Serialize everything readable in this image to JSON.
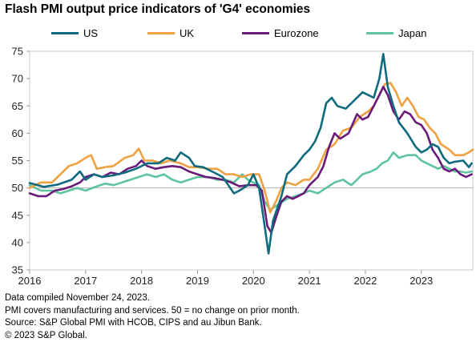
{
  "title": "Flash PMI output price indicators of 'G4' economies",
  "notes": [
    "Data compiled November 24, 2023.",
    "PMI covers manufacturing and services. 50 = no change on prior month.",
    "Source: S&P Global PMI with HCOB, CIPS and au Jibun Bank.",
    "© 2023 S&P Global."
  ],
  "chart_data": {
    "type": "line",
    "x_tick_labels": [
      "2016",
      "2017",
      "2018",
      "2019",
      "2020",
      "2021",
      "2022",
      "2023"
    ],
    "y_tick_labels": [
      "35",
      "40",
      "45",
      "50",
      "55",
      "60",
      "65",
      "70",
      "75"
    ],
    "ylim": [
      35,
      75
    ],
    "xlim": [
      "2016-01",
      "2023-11"
    ],
    "reference_line": 50,
    "grid": false,
    "legend_position": "top",
    "series": [
      {
        "name": "US",
        "color": "#0e6b7f",
        "values": [
          [
            2016.0,
            50.9
          ],
          [
            2016.25,
            50.2
          ],
          [
            2016.5,
            50.6
          ],
          [
            2016.75,
            51.5
          ],
          [
            2016.9,
            53.0
          ],
          [
            2017.0,
            51.5
          ],
          [
            2017.15,
            52.5
          ],
          [
            2017.3,
            52.0
          ],
          [
            2017.5,
            52.3
          ],
          [
            2017.7,
            52.8
          ],
          [
            2017.9,
            53.5
          ],
          [
            2018.1,
            54.5
          ],
          [
            2018.3,
            54.5
          ],
          [
            2018.45,
            55.5
          ],
          [
            2018.6,
            55.0
          ],
          [
            2018.7,
            56.5
          ],
          [
            2018.85,
            55.5
          ],
          [
            2018.95,
            54.0
          ],
          [
            2019.1,
            53.8
          ],
          [
            2019.3,
            52.8
          ],
          [
            2019.45,
            52.0
          ],
          [
            2019.55,
            50.5
          ],
          [
            2019.65,
            49.0
          ],
          [
            2019.75,
            49.5
          ],
          [
            2019.9,
            50.5
          ],
          [
            2020.0,
            52.5
          ],
          [
            2020.1,
            50.0
          ],
          [
            2020.2,
            43.0
          ],
          [
            2020.27,
            38.0
          ],
          [
            2020.35,
            44.0
          ],
          [
            2020.5,
            48.5
          ],
          [
            2020.6,
            52.5
          ],
          [
            2020.75,
            54.0
          ],
          [
            2020.9,
            56.0
          ],
          [
            2021.0,
            57.0
          ],
          [
            2021.1,
            58.5
          ],
          [
            2021.2,
            61.0
          ],
          [
            2021.3,
            65.5
          ],
          [
            2021.4,
            66.5
          ],
          [
            2021.5,
            65.0
          ],
          [
            2021.65,
            64.5
          ],
          [
            2021.8,
            66.0
          ],
          [
            2021.95,
            67.5
          ],
          [
            2022.05,
            67.0
          ],
          [
            2022.15,
            66.5
          ],
          [
            2022.25,
            70.0
          ],
          [
            2022.32,
            74.5
          ],
          [
            2022.4,
            68.5
          ],
          [
            2022.5,
            65.0
          ],
          [
            2022.6,
            62.0
          ],
          [
            2022.75,
            60.0
          ],
          [
            2022.9,
            57.5
          ],
          [
            2023.0,
            56.5
          ],
          [
            2023.1,
            57.0
          ],
          [
            2023.2,
            58.0
          ],
          [
            2023.3,
            57.5
          ],
          [
            2023.4,
            55.5
          ],
          [
            2023.5,
            54.5
          ],
          [
            2023.6,
            54.8
          ],
          [
            2023.75,
            55.0
          ],
          [
            2023.85,
            53.8
          ],
          [
            2023.9,
            54.5
          ]
        ]
      },
      {
        "name": "UK",
        "color": "#f0a142",
        "values": [
          [
            2016.0,
            50.0
          ],
          [
            2016.2,
            51.0
          ],
          [
            2016.4,
            51.0
          ],
          [
            2016.55,
            52.5
          ],
          [
            2016.7,
            54.0
          ],
          [
            2016.85,
            54.5
          ],
          [
            2017.0,
            55.5
          ],
          [
            2017.1,
            56.0
          ],
          [
            2017.2,
            53.5
          ],
          [
            2017.35,
            53.8
          ],
          [
            2017.5,
            54.0
          ],
          [
            2017.7,
            55.5
          ],
          [
            2017.85,
            56.0
          ],
          [
            2017.95,
            57.2
          ],
          [
            2018.05,
            55.0
          ],
          [
            2018.2,
            55.0
          ],
          [
            2018.35,
            54.5
          ],
          [
            2018.5,
            55.0
          ],
          [
            2018.7,
            54.5
          ],
          [
            2018.85,
            53.8
          ],
          [
            2019.0,
            53.8
          ],
          [
            2019.2,
            53.5
          ],
          [
            2019.35,
            53.5
          ],
          [
            2019.5,
            52.5
          ],
          [
            2019.65,
            52.5
          ],
          [
            2019.8,
            52.0
          ],
          [
            2019.95,
            52.5
          ],
          [
            2020.1,
            52.5
          ],
          [
            2020.2,
            49.5
          ],
          [
            2020.3,
            45.5
          ],
          [
            2020.4,
            47.5
          ],
          [
            2020.5,
            50.0
          ],
          [
            2020.6,
            51.0
          ],
          [
            2020.75,
            50.5
          ],
          [
            2020.9,
            51.5
          ],
          [
            2021.0,
            51.5
          ],
          [
            2021.15,
            53.5
          ],
          [
            2021.3,
            57.0
          ],
          [
            2021.45,
            58.0
          ],
          [
            2021.6,
            60.5
          ],
          [
            2021.75,
            61.0
          ],
          [
            2021.9,
            63.0
          ],
          [
            2022.05,
            64.0
          ],
          [
            2022.15,
            65.0
          ],
          [
            2022.25,
            67.0
          ],
          [
            2022.35,
            69.0
          ],
          [
            2022.45,
            69.2
          ],
          [
            2022.55,
            67.5
          ],
          [
            2022.65,
            65.0
          ],
          [
            2022.75,
            66.5
          ],
          [
            2022.85,
            65.0
          ],
          [
            2022.95,
            63.0
          ],
          [
            2023.05,
            62.5
          ],
          [
            2023.15,
            61.0
          ],
          [
            2023.25,
            60.0
          ],
          [
            2023.35,
            58.0
          ],
          [
            2023.5,
            57.0
          ],
          [
            2023.6,
            56.0
          ],
          [
            2023.75,
            56.0
          ],
          [
            2023.85,
            56.5
          ],
          [
            2023.92,
            57.0
          ]
        ]
      },
      {
        "name": "Eurozone",
        "color": "#6a1a78",
        "values": [
          [
            2016.0,
            49.0
          ],
          [
            2016.15,
            48.5
          ],
          [
            2016.3,
            48.5
          ],
          [
            2016.45,
            49.5
          ],
          [
            2016.6,
            49.8
          ],
          [
            2016.75,
            50.3
          ],
          [
            2016.9,
            51.0
          ],
          [
            2017.0,
            52.0
          ],
          [
            2017.15,
            52.5
          ],
          [
            2017.3,
            52.0
          ],
          [
            2017.45,
            52.8
          ],
          [
            2017.6,
            52.5
          ],
          [
            2017.75,
            53.5
          ],
          [
            2017.9,
            54.0
          ],
          [
            2018.0,
            55.0
          ],
          [
            2018.1,
            54.0
          ],
          [
            2018.25,
            53.5
          ],
          [
            2018.4,
            53.8
          ],
          [
            2018.55,
            54.0
          ],
          [
            2018.7,
            53.8
          ],
          [
            2018.85,
            53.0
          ],
          [
            2019.0,
            52.5
          ],
          [
            2019.15,
            52.0
          ],
          [
            2019.3,
            51.8
          ],
          [
            2019.45,
            51.5
          ],
          [
            2019.6,
            51.0
          ],
          [
            2019.75,
            50.3
          ],
          [
            2019.9,
            50.5
          ],
          [
            2020.05,
            50.5
          ],
          [
            2020.15,
            49.5
          ],
          [
            2020.25,
            43.0
          ],
          [
            2020.32,
            41.8
          ],
          [
            2020.4,
            44.5
          ],
          [
            2020.5,
            47.5
          ],
          [
            2020.6,
            48.5
          ],
          [
            2020.7,
            48.0
          ],
          [
            2020.8,
            48.5
          ],
          [
            2020.9,
            49.0
          ],
          [
            2021.0,
            50.5
          ],
          [
            2021.15,
            52.0
          ],
          [
            2021.25,
            54.0
          ],
          [
            2021.35,
            57.5
          ],
          [
            2021.45,
            60.0
          ],
          [
            2021.55,
            59.0
          ],
          [
            2021.7,
            60.0
          ],
          [
            2021.85,
            63.5
          ],
          [
            2021.95,
            62.5
          ],
          [
            2022.05,
            63.0
          ],
          [
            2022.15,
            65.0
          ],
          [
            2022.25,
            67.0
          ],
          [
            2022.32,
            68.5
          ],
          [
            2022.4,
            67.0
          ],
          [
            2022.5,
            64.0
          ],
          [
            2022.6,
            62.5
          ],
          [
            2022.7,
            64.0
          ],
          [
            2022.8,
            63.5
          ],
          [
            2022.9,
            62.0
          ],
          [
            2023.0,
            61.5
          ],
          [
            2023.1,
            60.0
          ],
          [
            2023.2,
            57.0
          ],
          [
            2023.3,
            55.5
          ],
          [
            2023.4,
            53.5
          ],
          [
            2023.5,
            53.0
          ],
          [
            2023.6,
            53.5
          ],
          [
            2023.7,
            52.5
          ],
          [
            2023.8,
            52.0
          ],
          [
            2023.9,
            52.5
          ]
        ]
      },
      {
        "name": "Japan",
        "color": "#5ec3a0",
        "values": [
          [
            2016.0,
            50.5
          ],
          [
            2016.2,
            49.5
          ],
          [
            2016.4,
            49.5
          ],
          [
            2016.55,
            49.0
          ],
          [
            2016.7,
            49.5
          ],
          [
            2016.85,
            50.0
          ],
          [
            2017.0,
            49.5
          ],
          [
            2017.2,
            50.3
          ],
          [
            2017.35,
            50.8
          ],
          [
            2017.5,
            50.5
          ],
          [
            2017.65,
            51.0
          ],
          [
            2017.8,
            51.5
          ],
          [
            2017.95,
            52.0
          ],
          [
            2018.1,
            52.5
          ],
          [
            2018.25,
            52.0
          ],
          [
            2018.4,
            52.5
          ],
          [
            2018.55,
            51.5
          ],
          [
            2018.7,
            51.0
          ],
          [
            2018.85,
            51.5
          ],
          [
            2019.0,
            52.0
          ],
          [
            2019.2,
            52.0
          ],
          [
            2019.35,
            51.5
          ],
          [
            2019.5,
            51.5
          ],
          [
            2019.65,
            51.0
          ],
          [
            2019.8,
            52.5
          ],
          [
            2019.9,
            51.5
          ],
          [
            2020.0,
            51.0
          ],
          [
            2020.1,
            50.5
          ],
          [
            2020.2,
            47.5
          ],
          [
            2020.3,
            46.0
          ],
          [
            2020.45,
            47.0
          ],
          [
            2020.6,
            48.0
          ],
          [
            2020.75,
            48.5
          ],
          [
            2020.9,
            49.0
          ],
          [
            2021.0,
            49.5
          ],
          [
            2021.15,
            49.0
          ],
          [
            2021.3,
            50.0
          ],
          [
            2021.45,
            51.0
          ],
          [
            2021.6,
            51.5
          ],
          [
            2021.75,
            50.5
          ],
          [
            2021.85,
            51.5
          ],
          [
            2021.95,
            52.5
          ],
          [
            2022.1,
            53.0
          ],
          [
            2022.2,
            53.5
          ],
          [
            2022.3,
            54.5
          ],
          [
            2022.4,
            55.0
          ],
          [
            2022.5,
            56.5
          ],
          [
            2022.6,
            55.5
          ],
          [
            2022.75,
            56.0
          ],
          [
            2022.9,
            56.0
          ],
          [
            2023.0,
            55.0
          ],
          [
            2023.1,
            54.5
          ],
          [
            2023.2,
            54.0
          ],
          [
            2023.3,
            53.5
          ],
          [
            2023.4,
            54.0
          ],
          [
            2023.5,
            53.5
          ],
          [
            2023.6,
            53.0
          ],
          [
            2023.7,
            53.0
          ],
          [
            2023.8,
            52.8
          ],
          [
            2023.9,
            53.0
          ]
        ]
      }
    ]
  }
}
